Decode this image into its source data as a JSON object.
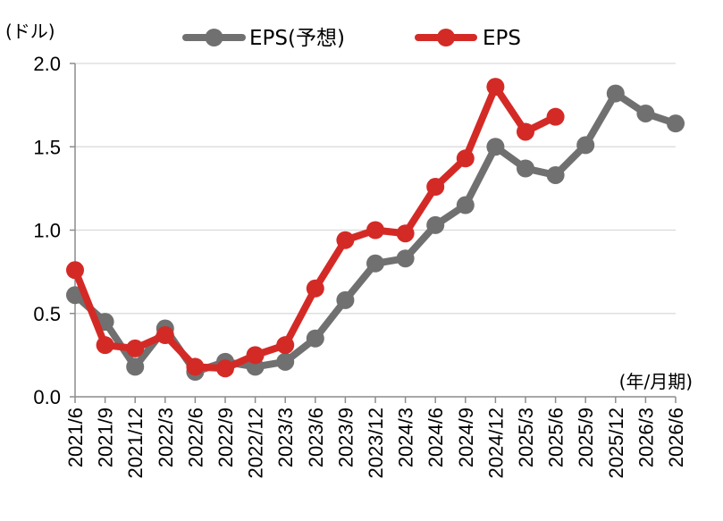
{
  "chart_data": {
    "type": "line",
    "title": "",
    "ylabel": "(ドル)",
    "xlabel": "(年/月期)",
    "ylim": [
      0.0,
      2.0
    ],
    "yticks": [
      "0.0",
      "0.5",
      "1.0",
      "1.5",
      "2.0"
    ],
    "grid": true,
    "legend_position": "top",
    "categories": [
      "2021/6",
      "2021/9",
      "2021/12",
      "2022/3",
      "2022/6",
      "2022/9",
      "2022/12",
      "2023/3",
      "2023/6",
      "2023/9",
      "2023/12",
      "2024/3",
      "2024/6",
      "2024/9",
      "2024/12",
      "2025/3",
      "2025/6",
      "2025/9",
      "2025/12",
      "2026/3",
      "2026/6"
    ],
    "series": [
      {
        "name": "EPS(予想)",
        "color": "#707070",
        "values": [
          0.61,
          0.45,
          0.18,
          0.41,
          0.15,
          0.21,
          0.18,
          0.21,
          0.35,
          0.58,
          0.8,
          0.83,
          1.03,
          1.15,
          1.5,
          1.37,
          1.33,
          1.51,
          1.82,
          1.7,
          1.64
        ]
      },
      {
        "name": "EPS",
        "color": "#d42a26",
        "values": [
          0.76,
          0.31,
          0.29,
          0.37,
          0.18,
          0.17,
          0.25,
          0.31,
          0.65,
          0.94,
          1.0,
          0.98,
          1.26,
          1.43,
          1.86,
          1.59,
          1.68,
          null,
          null,
          null,
          null
        ]
      }
    ]
  }
}
